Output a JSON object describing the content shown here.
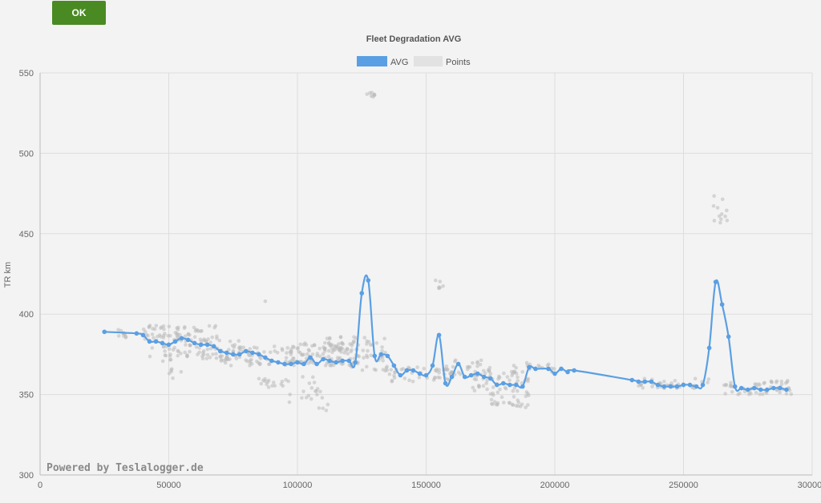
{
  "toolbar": {
    "ok_label": "OK"
  },
  "watermark": "Powered by Teslalogger.de",
  "colors": {
    "avg": "#5a9fe3",
    "points": "#b9b9b9",
    "button": "#4a8a22",
    "grid": "#dddddd"
  },
  "chart_data": {
    "type": "line",
    "title": "Fleet Degradation AVG",
    "xlabel": "",
    "ylabel": "TR km",
    "xlim": [
      0,
      300000
    ],
    "ylim": [
      300,
      550
    ],
    "xticks": [
      0,
      50000,
      100000,
      150000,
      200000,
      250000,
      300000
    ],
    "yticks": [
      300,
      350,
      400,
      450,
      500,
      550
    ],
    "grid": true,
    "legend": "top-center",
    "series": [
      {
        "name": "AVG",
        "type": "line",
        "points": [
          [
            25000,
            389
          ],
          [
            37500,
            388
          ],
          [
            40000,
            387
          ],
          [
            42500,
            383
          ],
          [
            45000,
            383
          ],
          [
            47500,
            382
          ],
          [
            50000,
            381
          ],
          [
            52500,
            383
          ],
          [
            55000,
            385
          ],
          [
            57500,
            384
          ],
          [
            60000,
            382
          ],
          [
            62500,
            381
          ],
          [
            65000,
            381
          ],
          [
            67500,
            380
          ],
          [
            70000,
            377
          ],
          [
            72500,
            376
          ],
          [
            75000,
            375
          ],
          [
            77500,
            375
          ],
          [
            80000,
            377
          ],
          [
            82500,
            376
          ],
          [
            85000,
            375
          ],
          [
            87500,
            373
          ],
          [
            90000,
            371
          ],
          [
            92500,
            370
          ],
          [
            95000,
            369
          ],
          [
            97500,
            369
          ],
          [
            100000,
            370
          ],
          [
            102500,
            369
          ],
          [
            105000,
            373
          ],
          [
            107500,
            369
          ],
          [
            110000,
            372
          ],
          [
            112500,
            371
          ],
          [
            115000,
            370
          ],
          [
            117500,
            371
          ],
          [
            120000,
            371
          ],
          [
            122500,
            370
          ],
          [
            125000,
            413
          ],
          [
            127500,
            421
          ],
          [
            130000,
            374
          ],
          [
            132500,
            375
          ],
          [
            135000,
            374
          ],
          [
            137500,
            368
          ],
          [
            140000,
            362
          ],
          [
            142500,
            365
          ],
          [
            145000,
            365
          ],
          [
            147500,
            363
          ],
          [
            150000,
            362
          ],
          [
            152500,
            368
          ],
          [
            155000,
            387
          ],
          [
            157500,
            357
          ],
          [
            160000,
            361
          ],
          [
            162500,
            369
          ],
          [
            165000,
            361
          ],
          [
            167500,
            362
          ],
          [
            170000,
            363
          ],
          [
            172500,
            361
          ],
          [
            175000,
            360
          ],
          [
            177500,
            356
          ],
          [
            180000,
            357
          ],
          [
            182500,
            356
          ],
          [
            185000,
            356
          ],
          [
            187500,
            355
          ],
          [
            190000,
            367
          ],
          [
            192500,
            366
          ],
          [
            197500,
            366
          ],
          [
            200000,
            363
          ],
          [
            202500,
            366
          ],
          [
            205000,
            364
          ],
          [
            207500,
            365
          ],
          [
            230000,
            359
          ],
          [
            232500,
            358
          ],
          [
            235000,
            358
          ],
          [
            237500,
            358
          ],
          [
            240000,
            356
          ],
          [
            242500,
            355
          ],
          [
            245000,
            355
          ],
          [
            247500,
            355
          ],
          [
            250000,
            356
          ],
          [
            252500,
            356
          ],
          [
            255000,
            355
          ],
          [
            257500,
            356
          ],
          [
            260000,
            379
          ],
          [
            262500,
            420
          ],
          [
            265000,
            406
          ],
          [
            267500,
            386
          ],
          [
            270000,
            355
          ],
          [
            272500,
            354
          ],
          [
            275000,
            353
          ],
          [
            277500,
            354
          ],
          [
            280000,
            353
          ],
          [
            282500,
            353
          ],
          [
            285000,
            354
          ],
          [
            287500,
            354
          ],
          [
            290000,
            353
          ]
        ]
      },
      {
        "name": "Points",
        "type": "scatter",
        "clusters": [
          {
            "x": [
              30000,
              35000
            ],
            "y": [
              385,
              391
            ],
            "n": 10
          },
          {
            "x": [
              40000,
              70000
            ],
            "y": [
              383,
              393
            ],
            "n": 70
          },
          {
            "x": [
              42000,
              55000
            ],
            "y": [
              370,
              380
            ],
            "n": 20
          },
          {
            "x": [
              50000,
              55000
            ],
            "y": [
              360,
              368
            ],
            "n": 6
          },
          {
            "x": [
              55000,
              80000
            ],
            "y": [
              372,
              384
            ],
            "n": 50
          },
          {
            "x": [
              70000,
              95000
            ],
            "y": [
              368,
              380
            ],
            "n": 55
          },
          {
            "x": [
              85000,
              95000
            ],
            "y": [
              354,
              360
            ],
            "n": 15
          },
          {
            "x": [
              95000,
              122000
            ],
            "y": [
              368,
              382
            ],
            "n": 110
          },
          {
            "x": [
              95000,
              110000
            ],
            "y": [
              345,
              362
            ],
            "n": 20
          },
          {
            "x": [
              108000,
              112000
            ],
            "y": [
              340,
              345
            ],
            "n": 4
          },
          {
            "x": [
              110000,
              135000
            ],
            "y": [
              376,
              386
            ],
            "n": 40
          },
          {
            "x": [
              120000,
              135000
            ],
            "y": [
              365,
              375
            ],
            "n": 25
          },
          {
            "x": [
              126000,
              130000
            ],
            "y": [
              535,
              538
            ],
            "n": 8
          },
          {
            "x": [
              134000,
              160000
            ],
            "y": [
              358,
              368
            ],
            "n": 45
          },
          {
            "x": [
              153000,
              157000
            ],
            "y": [
              416,
              422
            ],
            "n": 6
          },
          {
            "x": [
              158000,
              175000
            ],
            "y": [
              362,
              372
            ],
            "n": 30
          },
          {
            "x": [
              168000,
              190000
            ],
            "y": [
              352,
              364
            ],
            "n": 45
          },
          {
            "x": [
              175000,
              190000
            ],
            "y": [
              342,
              352
            ],
            "n": 30
          },
          {
            "x": [
              183000,
              200000
            ],
            "y": [
              364,
              370
            ],
            "n": 20
          },
          {
            "x": [
              230000,
              260000
            ],
            "y": [
              353,
              360
            ],
            "n": 40
          },
          {
            "x": [
              261000,
              267000
            ],
            "y": [
              455,
              476
            ],
            "n": 12
          },
          {
            "x": [
              265000,
              292000
            ],
            "y": [
              350,
              358
            ],
            "n": 45
          },
          {
            "x": [
              275000,
              292000
            ],
            "y": [
              356,
              359
            ],
            "n": 10
          }
        ],
        "extra_points": [
          [
            87500,
            408
          ]
        ]
      }
    ]
  }
}
